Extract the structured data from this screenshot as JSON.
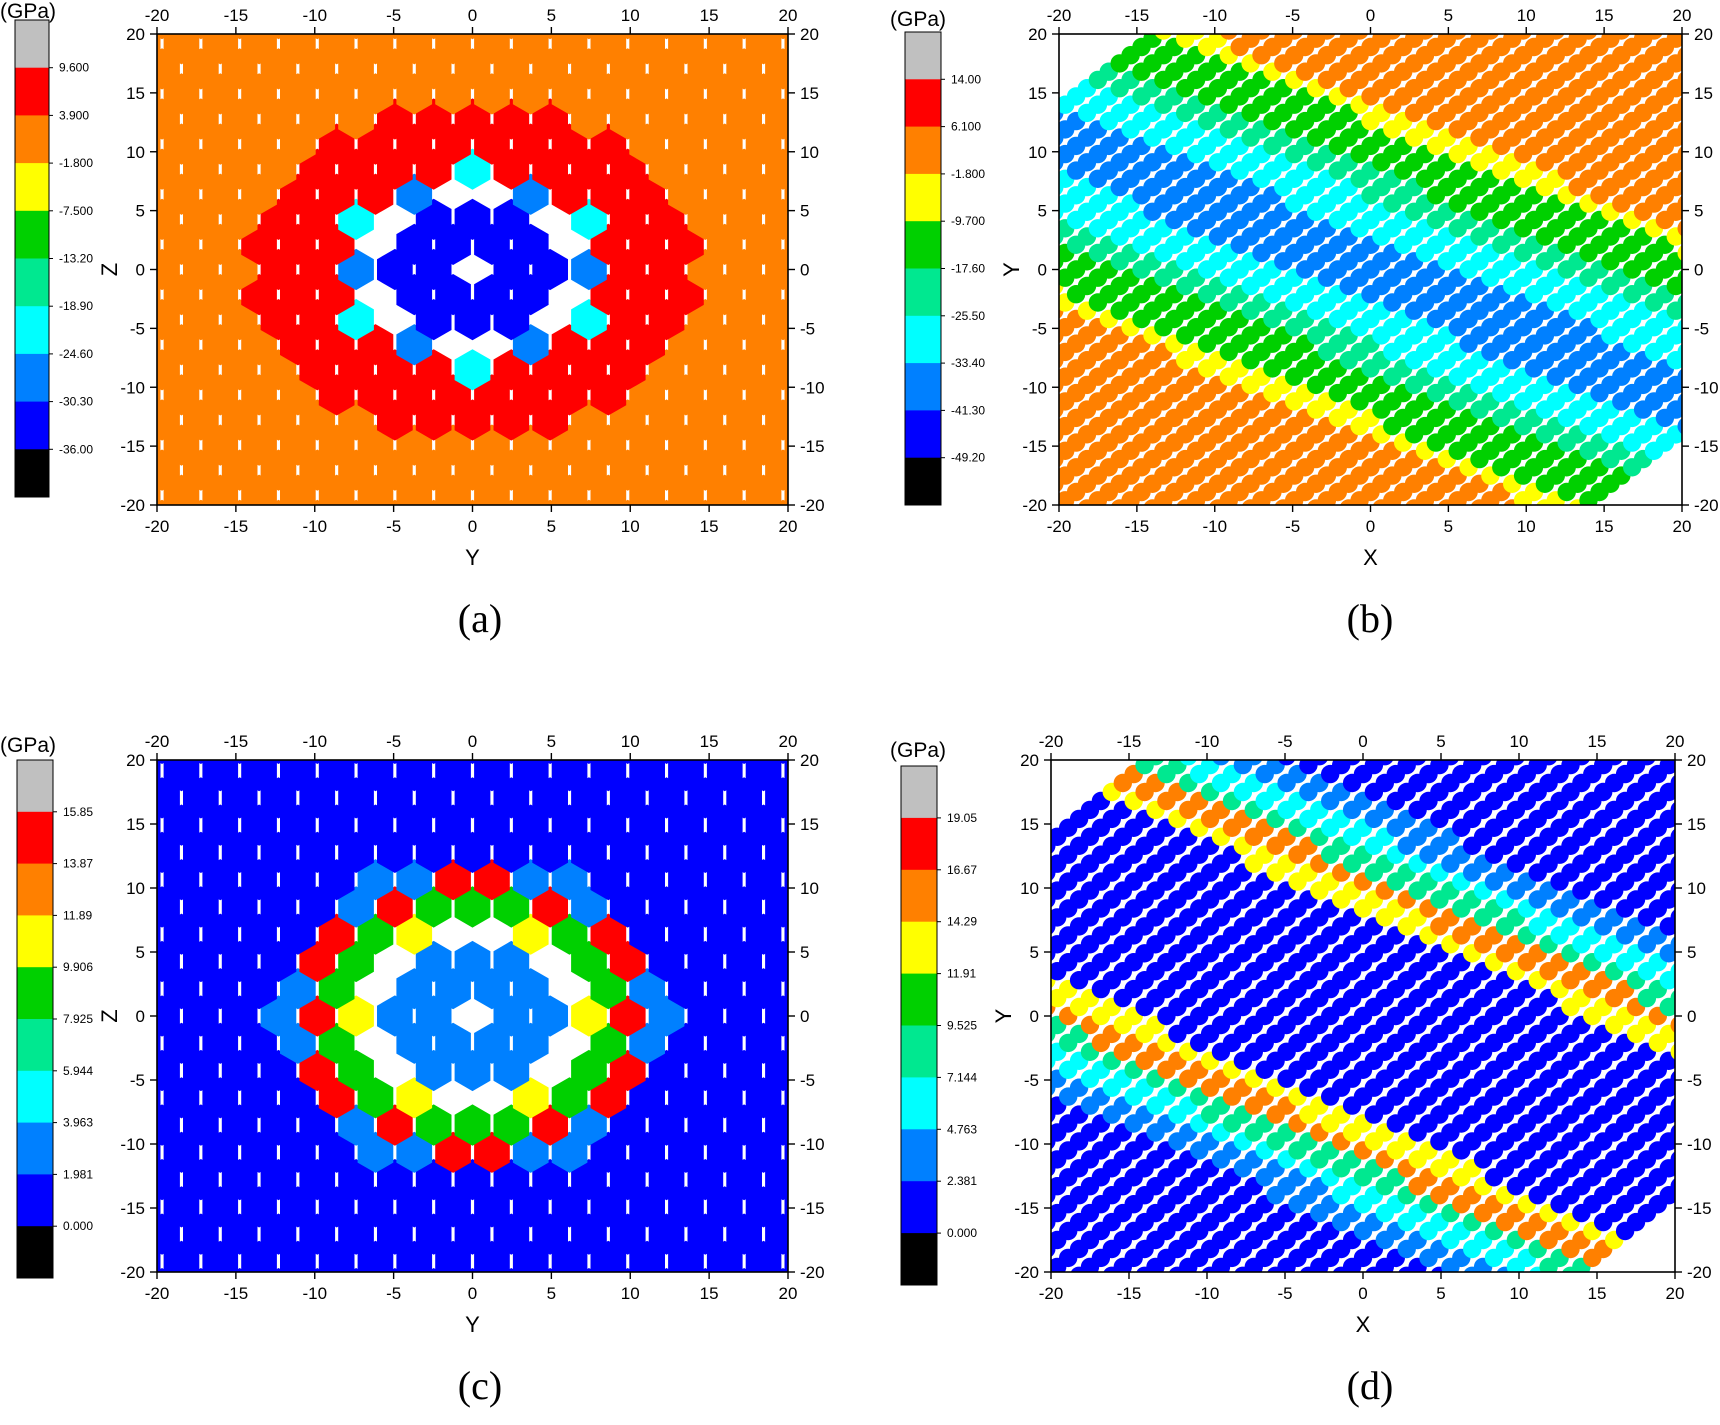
{
  "chart_data": [
    {
      "panel": "(a)",
      "type": "heatmap",
      "marker": "hexagon",
      "xlabel": "Y",
      "ylabel": "Z",
      "xlim": [
        -20,
        20
      ],
      "ylim": [
        -20,
        20
      ],
      "ticks": [
        -20,
        -15,
        -10,
        -5,
        0,
        5,
        10,
        15,
        20
      ],
      "colorbar": {
        "unit": "(GPa)",
        "levels": [
          "9.600",
          "3.900",
          "-1.800",
          "-7.500",
          "-13.20",
          "-18.90",
          "-24.60",
          "-30.30",
          "-36.00"
        ],
        "colors": [
          "#c0c0c0",
          "#ff0000",
          "#ff8000",
          "#ffff00",
          "#00d000",
          "#00e890",
          "#00ffff",
          "#0080ff",
          "#0000ff",
          "#000000"
        ]
      },
      "lattice": {
        "spacing_x": 2.46,
        "spacing_y": 2.13
      },
      "regions": [
        {
          "r_max": 6.0,
          "color": "#0000ff",
          "level": "-30.30"
        },
        {
          "r_max": 7.5,
          "color": "#0080ff",
          "level": "-24.60"
        },
        {
          "r_max": 8.8,
          "color": "#00ffff",
          "level": "-18.90"
        },
        {
          "r_max": 14.5,
          "color": "#ff0000",
          "level": "3.900"
        },
        {
          "r_max": 99,
          "color": "#ff8000",
          "level": "-1.800"
        }
      ],
      "voids": {
        "radius": 11.5,
        "centers_r": 6.2
      }
    },
    {
      "panel": "(b)",
      "type": "scatter",
      "marker": "circle",
      "xlabel": "X",
      "ylabel": "Y",
      "xlim": [
        -20,
        20
      ],
      "ylim": [
        -20,
        20
      ],
      "ticks": [
        -20,
        -15,
        -10,
        -5,
        0,
        5,
        10,
        15,
        20
      ],
      "colorbar": {
        "unit": "(GPa)",
        "levels": [
          "14.00",
          "6.100",
          "-1.800",
          "-9.700",
          "-17.60",
          "-25.50",
          "-33.40",
          "-41.30",
          "-49.20"
        ],
        "colors": [
          "#c0c0c0",
          "#ff0000",
          "#ff8000",
          "#ffff00",
          "#00d000",
          "#00e890",
          "#00ffff",
          "#0080ff",
          "#0000ff",
          "#000000"
        ]
      },
      "lattice": {
        "spacing_x": 1.4,
        "row_spacing": 1.4,
        "row_slope": -1
      },
      "bands": [
        {
          "d_max": 2.5,
          "color": "#0080ff"
        },
        {
          "d_max": 5.5,
          "color": "#00ffff"
        },
        {
          "d_max": 7.5,
          "color": "#00e890"
        },
        {
          "d_max": 11.0,
          "color": "#00d000"
        },
        {
          "d_max": 12.5,
          "color": "#ffff00"
        },
        {
          "d_max": 99,
          "color": "#ff8000"
        }
      ]
    },
    {
      "panel": "(c)",
      "type": "heatmap",
      "marker": "hexagon",
      "xlabel": "Y",
      "ylabel": "Z",
      "xlim": [
        -20,
        20
      ],
      "ylim": [
        -20,
        20
      ],
      "ticks": [
        -20,
        -15,
        -10,
        -5,
        0,
        5,
        10,
        15,
        20
      ],
      "colorbar": {
        "unit": "(GPa)",
        "levels": [
          "15.85",
          "13.87",
          "11.89",
          "9.906",
          "7.925",
          "5.944",
          "3.963",
          "1.981",
          "0.000"
        ],
        "colors": [
          "#c0c0c0",
          "#ff0000",
          "#ff8000",
          "#ffff00",
          "#00d000",
          "#00e890",
          "#00ffff",
          "#0080ff",
          "#0000ff",
          "#000000"
        ]
      },
      "lattice": {
        "spacing_x": 2.46,
        "spacing_y": 2.13
      },
      "regions": [
        {
          "r_max": 6.0,
          "color": "#0080ff",
          "level": "1.981"
        },
        {
          "r_max": 8.0,
          "color": "#ffff00",
          "level": "11.89"
        },
        {
          "r_max": 9.5,
          "color": "#00d000",
          "level": "7.925"
        },
        {
          "r_max": 11.0,
          "color": "#ff0000",
          "level": "15.85"
        },
        {
          "r_max": 12.5,
          "color": "#0080ff",
          "level": "1.981"
        },
        {
          "r_max": 99,
          "color": "#0000ff",
          "level": "0.000"
        }
      ]
    },
    {
      "panel": "(d)",
      "type": "scatter",
      "marker": "circle",
      "xlabel": "X",
      "ylabel": "Y",
      "xlim": [
        -20,
        20
      ],
      "ylim": [
        -20,
        20
      ],
      "ticks": [
        -20,
        -15,
        -10,
        -5,
        0,
        5,
        10,
        15,
        20
      ],
      "colorbar": {
        "unit": "(GPa)",
        "levels": [
          "19.05",
          "16.67",
          "14.29",
          "11.91",
          "9.525",
          "7.144",
          "4.763",
          "2.381",
          "0.000"
        ],
        "colors": [
          "#c0c0c0",
          "#ff0000",
          "#ff8000",
          "#ffff00",
          "#00d000",
          "#00e890",
          "#00ffff",
          "#0080ff",
          "#0000ff",
          "#000000"
        ]
      },
      "lattice": {
        "spacing_x": 1.4,
        "row_spacing": 1.4,
        "row_slope": -1
      },
      "bands": [
        {
          "d_max": 7.0,
          "color": "#0000ff"
        },
        {
          "d_max": 8.5,
          "color": "#ffff00"
        },
        {
          "d_max": 10.0,
          "color": "#ff8000"
        },
        {
          "d_max": 11.5,
          "color": "#00e890"
        },
        {
          "d_max": 13.0,
          "color": "#00ffff"
        },
        {
          "d_max": 15.0,
          "color": "#0080ff"
        },
        {
          "d_max": 99,
          "color": "#0000ff"
        }
      ]
    }
  ]
}
